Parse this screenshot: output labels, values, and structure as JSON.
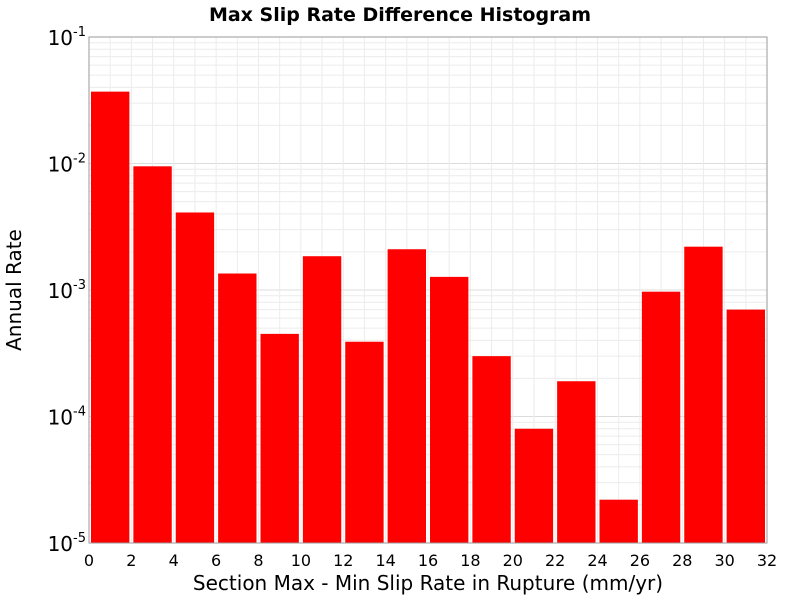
{
  "chart_data": {
    "type": "bar",
    "title": "Max Slip Rate Difference Histogram",
    "xlabel": "Section Max - Min Slip Rate in Rupture (mm/yr)",
    "ylabel": "Annual Rate",
    "y_scale": "log",
    "xlim": [
      0,
      32
    ],
    "ylim": [
      1e-05,
      0.1
    ],
    "grid": true,
    "legend": "none",
    "bar_color": "#ff0000",
    "bin_width": 2,
    "x_ticks": [
      "0",
      "2",
      "4",
      "6",
      "8",
      "10",
      "12",
      "14",
      "16",
      "18",
      "20",
      "22",
      "24",
      "26",
      "28",
      "30",
      "32"
    ],
    "y_ticks": [
      {
        "base": "10",
        "exp": "-1"
      },
      {
        "base": "10",
        "exp": "-2"
      },
      {
        "base": "10",
        "exp": "-3"
      },
      {
        "base": "10",
        "exp": "-4"
      },
      {
        "base": "10",
        "exp": "-5"
      }
    ],
    "series": [
      {
        "bins": [
          {
            "x0": 0,
            "x1": 2,
            "y": 0.037
          },
          {
            "x0": 2,
            "x1": 4,
            "y": 0.0095
          },
          {
            "x0": 4,
            "x1": 6,
            "y": 0.0041
          },
          {
            "x0": 6,
            "x1": 8,
            "y": 0.00135
          },
          {
            "x0": 8,
            "x1": 10,
            "y": 0.00045
          },
          {
            "x0": 10,
            "x1": 12,
            "y": 0.00185
          },
          {
            "x0": 12,
            "x1": 14,
            "y": 0.00039
          },
          {
            "x0": 14,
            "x1": 16,
            "y": 0.0021
          },
          {
            "x0": 16,
            "x1": 18,
            "y": 0.00127
          },
          {
            "x0": 18,
            "x1": 20,
            "y": 0.0003
          },
          {
            "x0": 20,
            "x1": 22,
            "y": 8e-05
          },
          {
            "x0": 22,
            "x1": 24,
            "y": 0.00019
          },
          {
            "x0": 24,
            "x1": 26,
            "y": 2.2e-05
          },
          {
            "x0": 26,
            "x1": 28,
            "y": 0.00097
          },
          {
            "x0": 28,
            "x1": 30,
            "y": 0.0022
          },
          {
            "x0": 30,
            "x1": 32,
            "y": 0.0007
          }
        ]
      }
    ]
  }
}
